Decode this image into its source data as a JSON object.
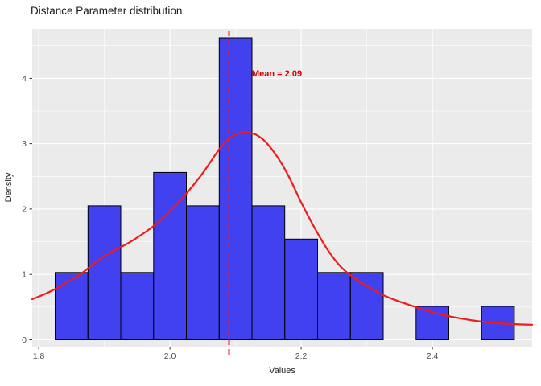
{
  "chart_data": {
    "type": "histogram",
    "title": "Distance Parameter distribution",
    "xlabel": "Values",
    "ylabel": "Density",
    "xlim": [
      1.79,
      2.552
    ],
    "ylim": [
      -0.105,
      4.755
    ],
    "x_ticks": [
      1.8,
      2.0,
      2.2,
      2.4
    ],
    "x_tick_labels": [
      "1.8",
      "2.0",
      "2.2",
      "2.4"
    ],
    "x_minor_ticks": [
      1.9,
      2.1,
      2.3,
      2.5
    ],
    "y_ticks": [
      0,
      1,
      2,
      3,
      4
    ],
    "y_tick_labels": [
      "0",
      "1",
      "2",
      "3",
      "4"
    ],
    "y_minor_ticks": [
      0.5,
      1.5,
      2.5,
      3.5,
      4.5
    ],
    "bins": {
      "start": 1.825,
      "binwidth": 0.05,
      "heights": [
        1.03,
        2.05,
        1.03,
        2.56,
        2.05,
        4.62,
        2.05,
        1.54,
        1.03,
        1.03,
        0,
        0.51,
        0,
        0.51
      ]
    },
    "density_curve": {
      "x": [
        1.79,
        1.82,
        1.86,
        1.9,
        1.94,
        1.98,
        2.02,
        2.05,
        2.08,
        2.1,
        2.12,
        2.14,
        2.16,
        2.18,
        2.2,
        2.22,
        2.24,
        2.26,
        2.28,
        2.3,
        2.33,
        2.36,
        2.4,
        2.44,
        2.48,
        2.52,
        2.552
      ],
      "y": [
        0.62,
        0.75,
        0.98,
        1.28,
        1.5,
        1.78,
        2.18,
        2.55,
        2.98,
        3.14,
        3.17,
        3.08,
        2.85,
        2.52,
        2.1,
        1.72,
        1.38,
        1.12,
        0.95,
        0.82,
        0.66,
        0.55,
        0.42,
        0.33,
        0.27,
        0.24,
        0.23
      ]
    },
    "mean_line": {
      "x": 2.09,
      "label": "Mean = 2.09"
    },
    "legend": "none",
    "grid": "on",
    "colors": {
      "panel_bg": "#EBEBEB",
      "grid_major": "#FFFFFF",
      "grid_minor": "#FFFFFF",
      "bar_fill": "#4141F0",
      "bar_stroke": "#000000",
      "curve": "#EE1C1C",
      "mean_line": "#EE1C1C",
      "annotation": "#DD0000",
      "tick_label": "#4D4D4D",
      "tick_mark": "#333333"
    }
  }
}
